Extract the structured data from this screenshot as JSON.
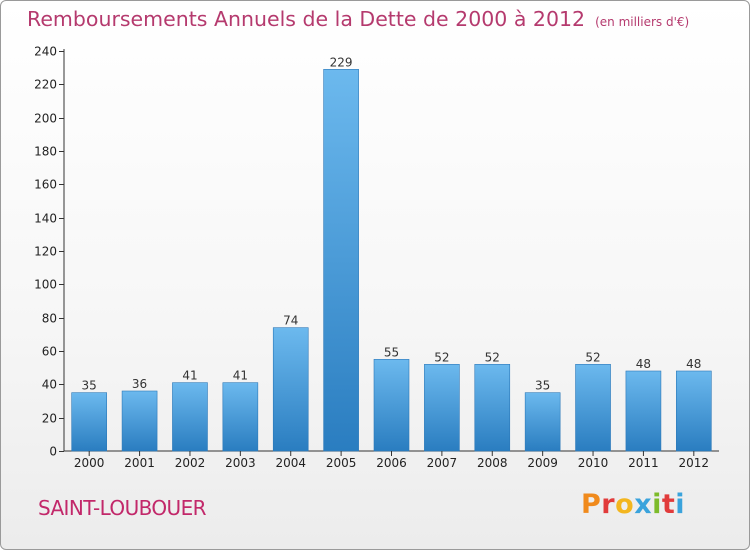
{
  "title": "Remboursements Annuels de la Dette de 2000 à 2012",
  "unit_note": "(en milliers d'€)",
  "commune": "SAINT-LOUBOUER",
  "logo": {
    "letters": [
      "P",
      "r",
      "o",
      "x",
      "i",
      "t",
      "i"
    ],
    "colors": [
      "#f08a1c",
      "#e13b3b",
      "#f3b61f",
      "#3aa3dc",
      "#7dbb2b",
      "#e13b3b",
      "#3aa3dc"
    ]
  },
  "colors": {
    "bar_light": "#6cb9ee",
    "bar_dark": "#2a7dc0",
    "title": "#b53a6e"
  },
  "chart_data": {
    "type": "bar",
    "title": "Remboursements Annuels de la Dette de 2000 à 2012",
    "categories": [
      "2000",
      "2001",
      "2002",
      "2003",
      "2004",
      "2005",
      "2006",
      "2007",
      "2008",
      "2009",
      "2010",
      "2011",
      "2012"
    ],
    "values": [
      35,
      36,
      41,
      41,
      74,
      229,
      55,
      52,
      52,
      35,
      52,
      48,
      48
    ],
    "ylim": [
      0,
      240
    ],
    "yticks": [
      0,
      20,
      40,
      60,
      80,
      100,
      120,
      140,
      160,
      180,
      200,
      220,
      240
    ],
    "grid": false,
    "data_labels": true
  }
}
